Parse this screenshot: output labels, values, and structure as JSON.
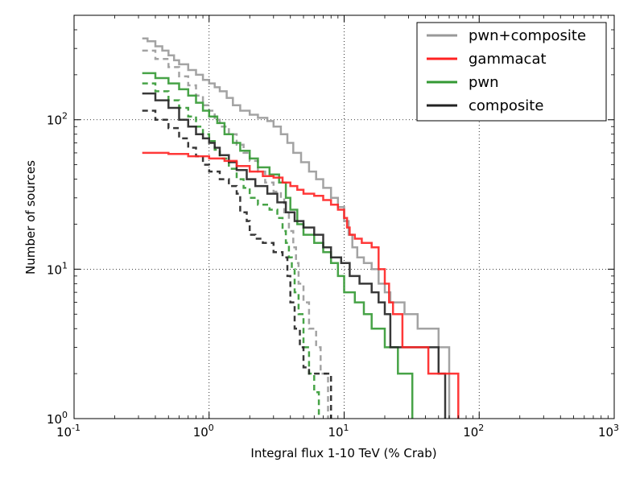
{
  "chart_data": {
    "type": "line",
    "xlabel": "Integral flux 1-10 TeV (% Crab)",
    "ylabel": "Number of sources",
    "xscale": "log",
    "yscale": "log",
    "xlim": [
      0.1,
      1000
    ],
    "ylim": [
      1,
      500
    ],
    "grid": true,
    "legend_position": "top-right",
    "x_ticks": [
      {
        "base": "10",
        "exp": "-1",
        "value": 0.1
      },
      {
        "base": "10",
        "exp": "0",
        "value": 1
      },
      {
        "base": "10",
        "exp": "1",
        "value": 10
      },
      {
        "base": "10",
        "exp": "2",
        "value": 100
      },
      {
        "base": "10",
        "exp": "3",
        "value": 1000
      }
    ],
    "y_ticks": [
      {
        "base": "10",
        "exp": "0",
        "value": 1
      },
      {
        "base": "10",
        "exp": "1",
        "value": 10
      },
      {
        "base": "10",
        "exp": "2",
        "value": 100
      }
    ],
    "series": [
      {
        "name": "pwn+composite",
        "color": "#999999",
        "style": "solid",
        "points": [
          [
            0.32,
            350
          ],
          [
            0.35,
            335
          ],
          [
            0.4,
            310
          ],
          [
            0.45,
            290
          ],
          [
            0.5,
            270
          ],
          [
            0.55,
            250
          ],
          [
            0.6,
            235
          ],
          [
            0.7,
            215
          ],
          [
            0.8,
            200
          ],
          [
            0.9,
            185
          ],
          [
            1.0,
            175
          ],
          [
            1.1,
            165
          ],
          [
            1.2,
            155
          ],
          [
            1.35,
            140
          ],
          [
            1.5,
            125
          ],
          [
            1.7,
            115
          ],
          [
            2.0,
            108
          ],
          [
            2.3,
            103
          ],
          [
            2.7,
            98
          ],
          [
            3.0,
            90
          ],
          [
            3.4,
            80
          ],
          [
            3.8,
            70
          ],
          [
            4.2,
            60
          ],
          [
            4.8,
            52
          ],
          [
            5.5,
            45
          ],
          [
            6.2,
            40
          ],
          [
            7.0,
            35
          ],
          [
            8.0,
            30
          ],
          [
            9.0,
            26
          ],
          [
            10.0,
            21
          ],
          [
            10.8,
            17
          ],
          [
            11.5,
            14
          ],
          [
            12.5,
            12
          ],
          [
            14.0,
            11
          ],
          [
            16.0,
            10
          ],
          [
            18.0,
            8
          ],
          [
            20.0,
            7
          ],
          [
            22.0,
            6
          ],
          [
            28.0,
            5
          ],
          [
            35.0,
            4
          ],
          [
            50.0,
            3
          ],
          [
            60.0,
            1
          ]
        ]
      },
      {
        "name": "gammacat",
        "color": "#ff2222",
        "style": "solid",
        "points": [
          [
            0.32,
            60
          ],
          [
            0.5,
            59
          ],
          [
            0.7,
            57
          ],
          [
            1.0,
            55
          ],
          [
            1.3,
            53
          ],
          [
            1.6,
            49
          ],
          [
            2.0,
            45
          ],
          [
            2.5,
            42
          ],
          [
            3.0,
            41
          ],
          [
            3.5,
            38
          ],
          [
            4.0,
            36
          ],
          [
            4.5,
            34
          ],
          [
            5.0,
            32
          ],
          [
            6.0,
            31
          ],
          [
            7.0,
            29
          ],
          [
            8.0,
            27
          ],
          [
            9.0,
            25
          ],
          [
            10.0,
            22
          ],
          [
            10.5,
            19
          ],
          [
            11.0,
            17
          ],
          [
            12.0,
            16
          ],
          [
            13.5,
            15
          ],
          [
            16.0,
            14
          ],
          [
            18.0,
            10
          ],
          [
            20.0,
            8
          ],
          [
            21.5,
            6
          ],
          [
            23.0,
            5
          ],
          [
            27.0,
            3
          ],
          [
            42.0,
            2
          ],
          [
            70.0,
            1
          ]
        ]
      },
      {
        "name": "pwn",
        "color": "#339933",
        "style": "solid",
        "points": [
          [
            0.32,
            205
          ],
          [
            0.4,
            190
          ],
          [
            0.5,
            175
          ],
          [
            0.6,
            160
          ],
          [
            0.7,
            145
          ],
          [
            0.8,
            130
          ],
          [
            0.9,
            115
          ],
          [
            1.0,
            105
          ],
          [
            1.15,
            95
          ],
          [
            1.3,
            80
          ],
          [
            1.5,
            70
          ],
          [
            1.7,
            62
          ],
          [
            2.0,
            55
          ],
          [
            2.3,
            48
          ],
          [
            2.8,
            43
          ],
          [
            3.3,
            38
          ],
          [
            3.7,
            30
          ],
          [
            4.0,
            25
          ],
          [
            4.5,
            20
          ],
          [
            5.0,
            17
          ],
          [
            6.0,
            15
          ],
          [
            7.0,
            13
          ],
          [
            8.0,
            11
          ],
          [
            9.0,
            9
          ],
          [
            10.0,
            7
          ],
          [
            12.0,
            6
          ],
          [
            14.0,
            5
          ],
          [
            16.0,
            4
          ],
          [
            20.0,
            3
          ],
          [
            25.0,
            2
          ],
          [
            32.0,
            1
          ]
        ]
      },
      {
        "name": "composite",
        "color": "#222222",
        "style": "solid",
        "points": [
          [
            0.32,
            150
          ],
          [
            0.4,
            135
          ],
          [
            0.5,
            120
          ],
          [
            0.6,
            100
          ],
          [
            0.7,
            90
          ],
          [
            0.8,
            80
          ],
          [
            0.9,
            75
          ],
          [
            1.0,
            70
          ],
          [
            1.1,
            65
          ],
          [
            1.2,
            58
          ],
          [
            1.4,
            52
          ],
          [
            1.6,
            46
          ],
          [
            1.9,
            40
          ],
          [
            2.2,
            36
          ],
          [
            2.7,
            32
          ],
          [
            3.2,
            28
          ],
          [
            3.7,
            24
          ],
          [
            4.3,
            21
          ],
          [
            5.0,
            19
          ],
          [
            6.0,
            17
          ],
          [
            7.0,
            14
          ],
          [
            8.0,
            12
          ],
          [
            9.5,
            11
          ],
          [
            11.0,
            9
          ],
          [
            13.0,
            8
          ],
          [
            16.0,
            7
          ],
          [
            18.0,
            6
          ],
          [
            20.0,
            5
          ],
          [
            22.0,
            3
          ],
          [
            50.0,
            2
          ],
          [
            56.0,
            1
          ]
        ]
      },
      {
        "name": "",
        "color": "#999999",
        "style": "dashed",
        "points": [
          [
            0.32,
            290
          ],
          [
            0.4,
            255
          ],
          [
            0.5,
            225
          ],
          [
            0.6,
            195
          ],
          [
            0.7,
            170
          ],
          [
            0.8,
            145
          ],
          [
            0.9,
            125
          ],
          [
            1.0,
            115
          ],
          [
            1.1,
            100
          ],
          [
            1.2,
            90
          ],
          [
            1.4,
            80
          ],
          [
            1.6,
            68
          ],
          [
            1.8,
            60
          ],
          [
            2.0,
            53
          ],
          [
            2.3,
            45
          ],
          [
            2.6,
            38
          ],
          [
            3.0,
            33
          ],
          [
            3.4,
            30
          ],
          [
            3.6,
            24
          ],
          [
            3.9,
            18
          ],
          [
            4.2,
            14
          ],
          [
            4.4,
            11
          ],
          [
            4.6,
            8
          ],
          [
            5.0,
            6
          ],
          [
            5.5,
            4
          ],
          [
            6.2,
            3
          ],
          [
            6.7,
            2
          ],
          [
            7.6,
            1
          ]
        ]
      },
      {
        "name": "",
        "color": "#339933",
        "style": "dashed",
        "points": [
          [
            0.32,
            175
          ],
          [
            0.4,
            155
          ],
          [
            0.5,
            135
          ],
          [
            0.6,
            120
          ],
          [
            0.7,
            105
          ],
          [
            0.8,
            90
          ],
          [
            0.9,
            80
          ],
          [
            1.0,
            72
          ],
          [
            1.1,
            63
          ],
          [
            1.2,
            55
          ],
          [
            1.4,
            47
          ],
          [
            1.6,
            40
          ],
          [
            1.8,
            35
          ],
          [
            2.0,
            30
          ],
          [
            2.3,
            27
          ],
          [
            2.8,
            25
          ],
          [
            3.2,
            22
          ],
          [
            3.5,
            18
          ],
          [
            3.7,
            15
          ],
          [
            3.9,
            12
          ],
          [
            4.1,
            10
          ],
          [
            4.3,
            7
          ],
          [
            4.6,
            5
          ],
          [
            5.0,
            3
          ],
          [
            5.5,
            2
          ],
          [
            6.0,
            1.5
          ],
          [
            6.5,
            1
          ]
        ]
      },
      {
        "name": "",
        "color": "#222222",
        "style": "dashed",
        "points": [
          [
            0.32,
            115
          ],
          [
            0.4,
            100
          ],
          [
            0.5,
            88
          ],
          [
            0.6,
            75
          ],
          [
            0.7,
            65
          ],
          [
            0.8,
            57
          ],
          [
            0.9,
            50
          ],
          [
            1.0,
            45
          ],
          [
            1.2,
            40
          ],
          [
            1.4,
            36
          ],
          [
            1.6,
            32
          ],
          [
            1.7,
            24
          ],
          [
            1.9,
            21
          ],
          [
            2.0,
            17
          ],
          [
            2.2,
            16
          ],
          [
            2.5,
            15
          ],
          [
            3.0,
            13
          ],
          [
            3.5,
            12
          ],
          [
            3.8,
            9
          ],
          [
            4.0,
            6
          ],
          [
            4.3,
            4
          ],
          [
            4.7,
            3
          ],
          [
            5.0,
            2.2
          ],
          [
            5.5,
            2
          ],
          [
            7.5,
            2
          ],
          [
            8.0,
            1
          ]
        ]
      }
    ]
  }
}
